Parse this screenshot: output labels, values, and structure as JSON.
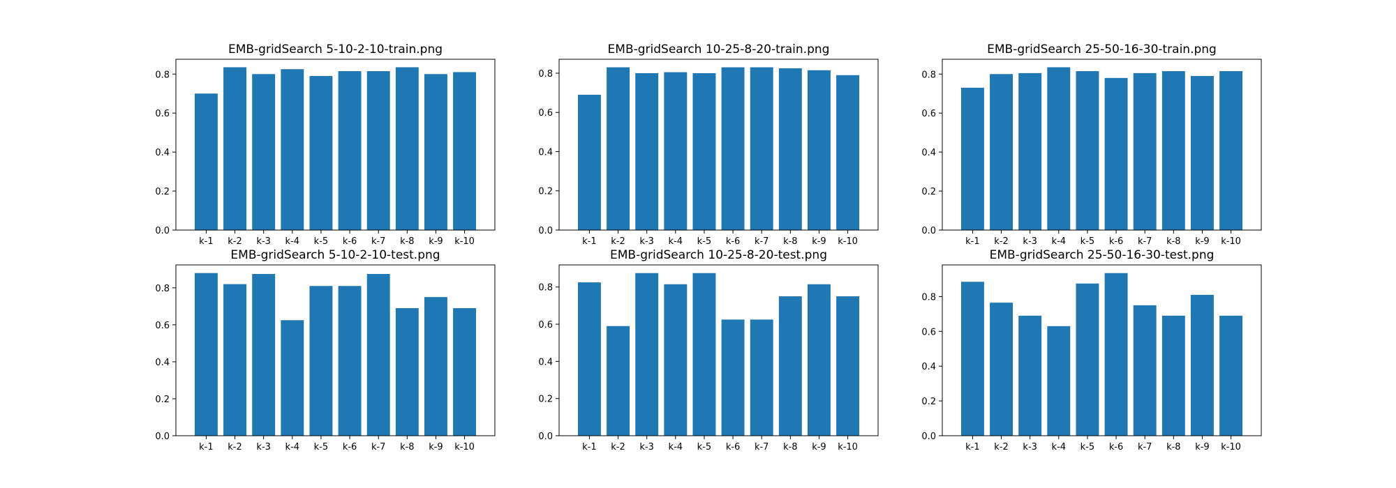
{
  "chart_data": [
    {
      "type": "bar",
      "title": "EMB-gridSearch 5-10-2-10-train.png",
      "categories": [
        "k-1",
        "k-2",
        "k-3",
        "k-4",
        "k-5",
        "k-6",
        "k-7",
        "k-8",
        "k-9",
        "k-10"
      ],
      "values": [
        0.7,
        0.835,
        0.8,
        0.825,
        0.79,
        0.815,
        0.815,
        0.835,
        0.8,
        0.81
      ],
      "yticks": [
        "0.0",
        "0.2",
        "0.4",
        "0.6",
        "0.8"
      ],
      "ylim": [
        0,
        0.876
      ],
      "color": "#1f77b4"
    },
    {
      "type": "bar",
      "title": "EMB-gridSearch 10-25-8-20-train.png",
      "categories": [
        "k-1",
        "k-2",
        "k-3",
        "k-4",
        "k-5",
        "k-6",
        "k-7",
        "k-8",
        "k-9",
        "k-10"
      ],
      "values": [
        0.69,
        0.83,
        0.8,
        0.805,
        0.8,
        0.83,
        0.83,
        0.825,
        0.815,
        0.79
      ],
      "yticks": [
        "0.0",
        "0.2",
        "0.4",
        "0.6",
        "0.8"
      ],
      "ylim": [
        0,
        0.871
      ],
      "color": "#1f77b4"
    },
    {
      "type": "bar",
      "title": "EMB-gridSearch 25-50-16-30-train.png",
      "categories": [
        "k-1",
        "k-2",
        "k-3",
        "k-4",
        "k-5",
        "k-6",
        "k-7",
        "k-8",
        "k-9",
        "k-10"
      ],
      "values": [
        0.73,
        0.8,
        0.805,
        0.835,
        0.815,
        0.78,
        0.805,
        0.815,
        0.79,
        0.815
      ],
      "yticks": [
        "0.0",
        "0.2",
        "0.4",
        "0.6",
        "0.8"
      ],
      "ylim": [
        0,
        0.876
      ],
      "color": "#1f77b4"
    },
    {
      "type": "bar",
      "title": "EMB-gridSearch 5-10-2-10-test.png",
      "categories": [
        "k-1",
        "k-2",
        "k-3",
        "k-4",
        "k-5",
        "k-6",
        "k-7",
        "k-8",
        "k-9",
        "k-10"
      ],
      "values": [
        0.88,
        0.82,
        0.875,
        0.625,
        0.81,
        0.81,
        0.875,
        0.69,
        0.75,
        0.69
      ],
      "yticks": [
        "0.0",
        "0.2",
        "0.4",
        "0.6",
        "0.8"
      ],
      "ylim": [
        0,
        0.924
      ],
      "color": "#1f77b4"
    },
    {
      "type": "bar",
      "title": "EMB-gridSearch 10-25-8-20-test.png",
      "categories": [
        "k-1",
        "k-2",
        "k-3",
        "k-4",
        "k-5",
        "k-6",
        "k-7",
        "k-8",
        "k-9",
        "k-10"
      ],
      "values": [
        0.825,
        0.59,
        0.875,
        0.815,
        0.875,
        0.625,
        0.625,
        0.75,
        0.815,
        0.75
      ],
      "yticks": [
        "0.0",
        "0.2",
        "0.4",
        "0.6",
        "0.8"
      ],
      "ylim": [
        0,
        0.919
      ],
      "color": "#1f77b4"
    },
    {
      "type": "bar",
      "title": "EMB-gridSearch 25-50-16-30-test.png",
      "categories": [
        "k-1",
        "k-2",
        "k-3",
        "k-4",
        "k-5",
        "k-6",
        "k-7",
        "k-8",
        "k-9",
        "k-10"
      ],
      "values": [
        0.885,
        0.765,
        0.69,
        0.63,
        0.875,
        0.935,
        0.75,
        0.69,
        0.81,
        0.69
      ],
      "yticks": [
        "0.0",
        "0.2",
        "0.4",
        "0.6",
        "0.8"
      ],
      "ylim": [
        0,
        0.982
      ],
      "color": "#1f77b4"
    }
  ]
}
